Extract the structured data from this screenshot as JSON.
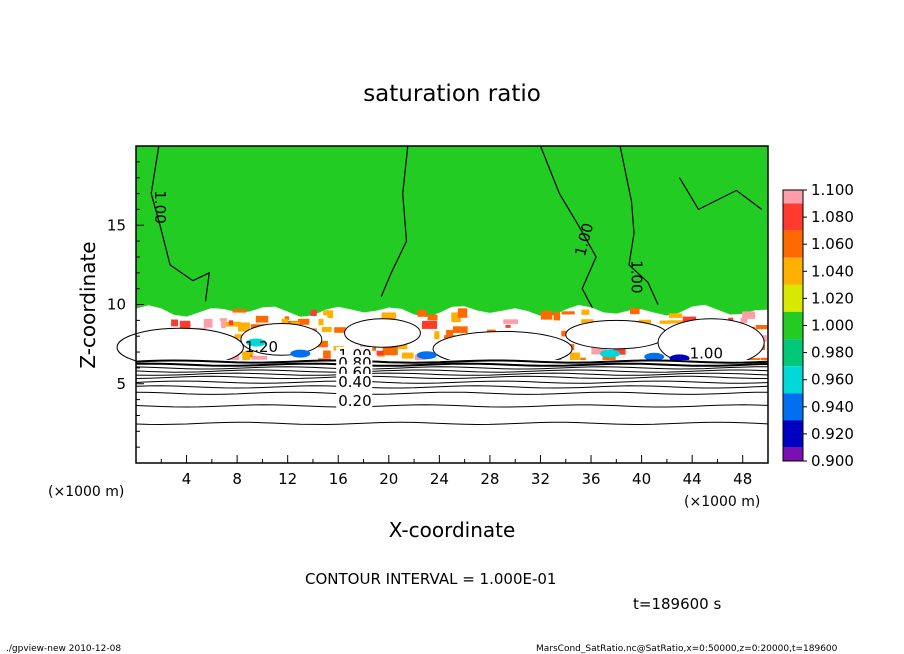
{
  "chart_data": {
    "type": "heatmap",
    "title": "saturation ratio",
    "xlabel": "X-coordinate",
    "ylabel": "Z-coordinate",
    "x_unit_left": "(×1000 m)",
    "x_unit_right": "(×1000 m)",
    "xlim": [
      0,
      50
    ],
    "ylim": [
      0,
      20
    ],
    "xticks": [
      4,
      8,
      12,
      16,
      20,
      24,
      28,
      32,
      36,
      40,
      44,
      48
    ],
    "yticks": [
      5,
      10,
      15
    ],
    "colorbar": {
      "levels": [
        "1.100",
        "1.080",
        "1.060",
        "1.040",
        "1.020",
        "1.000",
        "0.980",
        "0.960",
        "0.940",
        "0.920",
        "0.900"
      ],
      "colors": [
        "#ff9da8",
        "#ff3b30",
        "#ff6a00",
        "#ffb000",
        "#d8e800",
        "#22cc22",
        "#00c878",
        "#00d8d8",
        "#0070f0",
        "#0000c0",
        "#7a10b0"
      ]
    },
    "contour_labels": [
      {
        "text": "1.00",
        "x": 1.5,
        "y": 17.2,
        "rot": 90
      },
      {
        "text": "1.00",
        "x": 35.5,
        "y": 13.0,
        "rot": -75
      },
      {
        "text": "1.00",
        "x": 39.2,
        "y": 12.8,
        "rot": 90
      },
      {
        "text": "1.00",
        "x": 43.8,
        "y": 6.6,
        "rot": 0
      },
      {
        "text": "1.20",
        "x": 8.6,
        "y": 7.0,
        "rot": 0
      },
      {
        "text": "1.00",
        "x": 16.0,
        "y": 6.5,
        "rot": 0
      },
      {
        "text": "0.80",
        "x": 16.0,
        "y": 6.0,
        "rot": 0
      },
      {
        "text": "0.60",
        "x": 16.0,
        "y": 5.4,
        "rot": 0
      },
      {
        "text": "0.40",
        "x": 16.0,
        "y": 4.8,
        "rot": 0
      },
      {
        "text": "0.20",
        "x": 16.0,
        "y": 3.6,
        "rot": 0
      }
    ],
    "contour_interval": "CONTOUR INTERVAL = 1.000E-01",
    "time": "t=189600 s"
  },
  "footer": {
    "left": "./gpview-new  2010-12-08",
    "right": "MarsCond_SatRatio.nc@SatRatio,x=0:50000,z=0:20000,t=189600"
  }
}
